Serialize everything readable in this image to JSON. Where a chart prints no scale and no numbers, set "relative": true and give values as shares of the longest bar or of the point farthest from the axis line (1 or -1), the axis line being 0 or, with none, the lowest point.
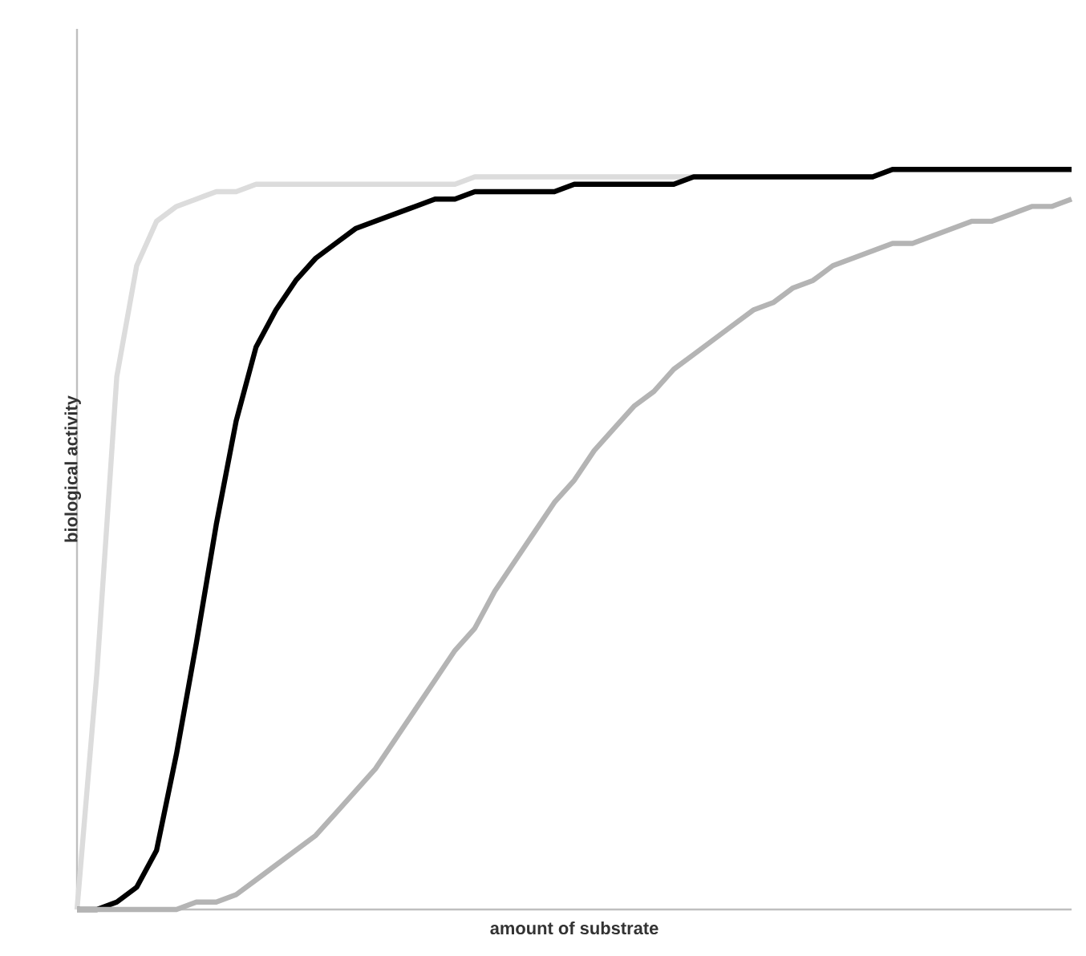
{
  "chart_data": {
    "type": "line",
    "relative": true,
    "xlabel": "amount of substrate",
    "ylabel": "biological activity",
    "categories": [
      null,
      null,
      null,
      null,
      null,
      null,
      null,
      null,
      null,
      null,
      null,
      null,
      null,
      null,
      null,
      null,
      null,
      null,
      null,
      null,
      null,
      null,
      null,
      null,
      null,
      null,
      null,
      null,
      null,
      null,
      null,
      null,
      null,
      null,
      null,
      null,
      null,
      null,
      null,
      null,
      null,
      null,
      null,
      null,
      null,
      null,
      null,
      null,
      null,
      null,
      null
    ],
    "series": [
      {
        "color": "#dcdcdc",
        "values": [
          0,
          0.32,
          0.72,
          0.87,
          0.93,
          0.95,
          0.96,
          0.97,
          0.97,
          0.98,
          0.98,
          0.98,
          0.98,
          0.98,
          0.98,
          0.98,
          0.98,
          0.98,
          0.98,
          0.98,
          0.99,
          0.99,
          0.99,
          0.99,
          0.99,
          0.99,
          0.99,
          0.99,
          0.99,
          0.99,
          0.99,
          0.99,
          0.99,
          0.99,
          0.99,
          0.99,
          0.99,
          0.99,
          0.99,
          0.99,
          0.99,
          1.0,
          1.0,
          1.0,
          1.0,
          1.0,
          1.0,
          1.0,
          1.0,
          1.0,
          1.0
        ]
      },
      {
        "color": "#000000",
        "values": [
          0,
          0,
          0.01,
          0.03,
          0.08,
          0.21,
          0.36,
          0.52,
          0.66,
          0.76,
          0.81,
          0.85,
          0.88,
          0.9,
          0.92,
          0.93,
          0.94,
          0.95,
          0.96,
          0.96,
          0.97,
          0.97,
          0.97,
          0.97,
          0.97,
          0.98,
          0.98,
          0.98,
          0.98,
          0.98,
          0.98,
          0.99,
          0.99,
          0.99,
          0.99,
          0.99,
          0.99,
          0.99,
          0.99,
          0.99,
          0.99,
          1.0,
          1.0,
          1.0,
          1.0,
          1.0,
          1.0,
          1.0,
          1.0,
          1.0,
          1.0
        ]
      },
      {
        "color": "#b4b4b4",
        "values": [
          0,
          0,
          0,
          0,
          0,
          0,
          0.01,
          0.01,
          0.02,
          0.04,
          0.06,
          0.08,
          0.1,
          0.13,
          0.16,
          0.19,
          0.23,
          0.27,
          0.31,
          0.35,
          0.38,
          0.43,
          0.47,
          0.51,
          0.55,
          0.58,
          0.62,
          0.65,
          0.68,
          0.7,
          0.73,
          0.75,
          0.77,
          0.79,
          0.81,
          0.82,
          0.84,
          0.85,
          0.87,
          0.88,
          0.89,
          0.9,
          0.9,
          0.91,
          0.92,
          0.93,
          0.93,
          0.94,
          0.95,
          0.95,
          0.96
        ]
      }
    ]
  }
}
